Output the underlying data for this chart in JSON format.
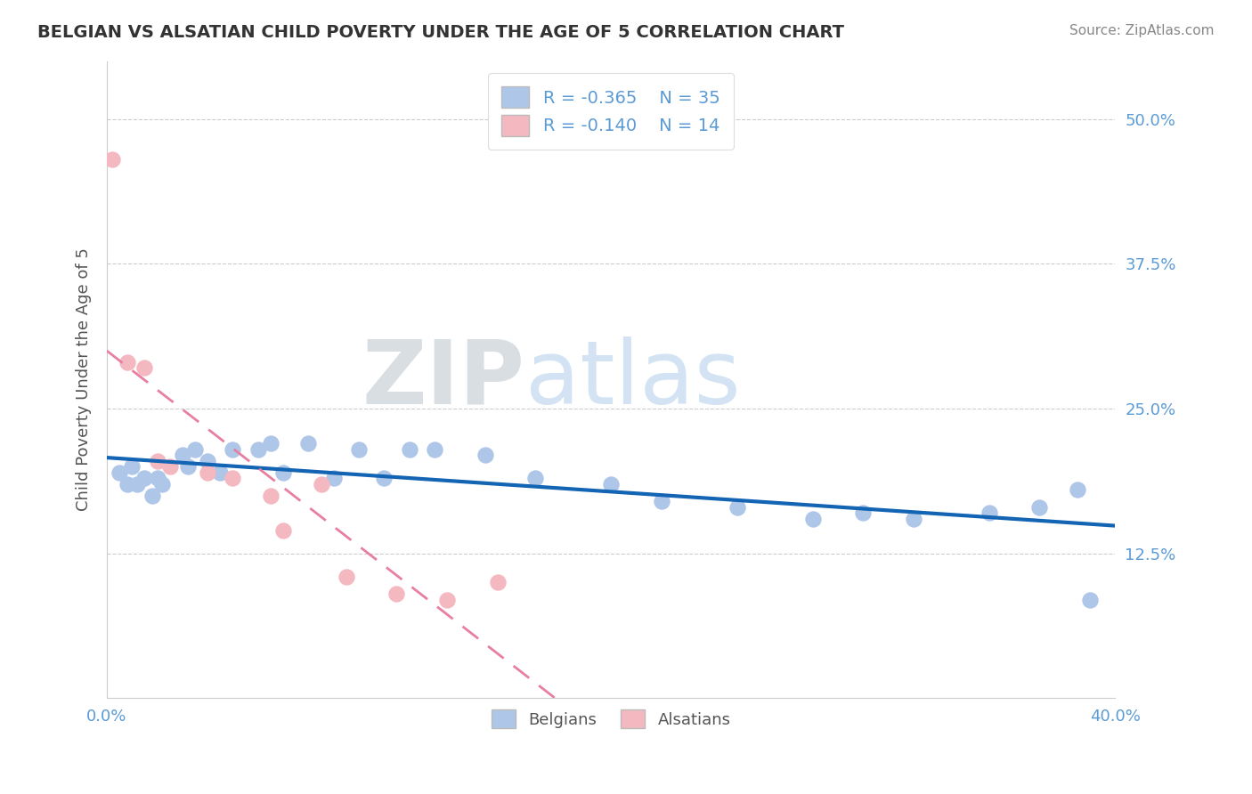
{
  "title": "BELGIAN VS ALSATIAN CHILD POVERTY UNDER THE AGE OF 5 CORRELATION CHART",
  "source": "Source: ZipAtlas.com",
  "ylabel": "Child Poverty Under the Age of 5",
  "xlim": [
    0.0,
    0.4
  ],
  "ylim": [
    0.0,
    0.55
  ],
  "xtick_vals": [
    0.0,
    0.1,
    0.2,
    0.3,
    0.4
  ],
  "xticklabels": [
    "0.0%",
    "",
    "",
    "",
    "40.0%"
  ],
  "ytick_vals": [
    0.125,
    0.25,
    0.375,
    0.5
  ],
  "yticklabels": [
    "12.5%",
    "25.0%",
    "37.5%",
    "50.0%"
  ],
  "belgian_color": "#aec6e8",
  "alsatian_color": "#f4b8c1",
  "belgian_line_color": "#1464b4",
  "alsatian_line_color": "#e87fa0",
  "belgian_R": "-0.365",
  "belgian_N": "35",
  "alsatian_R": "-0.140",
  "alsatian_N": "14",
  "background_color": "#ffffff",
  "grid_color": "#cccccc",
  "title_color": "#333333",
  "axis_tick_color": "#5b9bd5",
  "ylabel_color": "#555555",
  "source_color": "#888888",
  "belgian_x": [
    0.005,
    0.008,
    0.01,
    0.012,
    0.015,
    0.018,
    0.02,
    0.022,
    0.03,
    0.032,
    0.035,
    0.04,
    0.045,
    0.05,
    0.06,
    0.065,
    0.07,
    0.08,
    0.09,
    0.1,
    0.11,
    0.12,
    0.13,
    0.15,
    0.17,
    0.2,
    0.22,
    0.25,
    0.28,
    0.3,
    0.32,
    0.35,
    0.37,
    0.385,
    0.39
  ],
  "belgian_y": [
    0.195,
    0.185,
    0.2,
    0.185,
    0.19,
    0.175,
    0.19,
    0.185,
    0.21,
    0.2,
    0.215,
    0.205,
    0.195,
    0.215,
    0.215,
    0.22,
    0.195,
    0.22,
    0.19,
    0.215,
    0.19,
    0.215,
    0.215,
    0.21,
    0.19,
    0.185,
    0.17,
    0.165,
    0.155,
    0.16,
    0.155,
    0.16,
    0.165,
    0.18,
    0.085
  ],
  "alsatian_x": [
    0.002,
    0.008,
    0.015,
    0.02,
    0.025,
    0.04,
    0.05,
    0.065,
    0.07,
    0.085,
    0.095,
    0.115,
    0.135,
    0.155
  ],
  "alsatian_y": [
    0.465,
    0.29,
    0.285,
    0.205,
    0.2,
    0.195,
    0.19,
    0.175,
    0.145,
    0.185,
    0.105,
    0.09,
    0.085,
    0.1
  ]
}
